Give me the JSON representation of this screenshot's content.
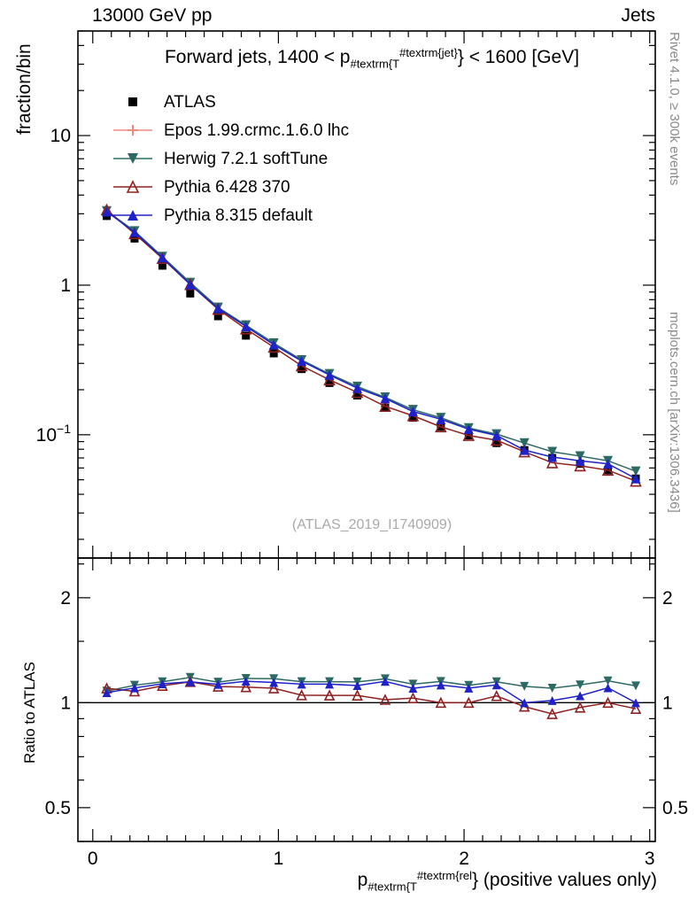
{
  "header": {
    "left": "13000 GeV pp",
    "right": "Jets"
  },
  "panel_title": {
    "prefix": "Forward jets, 1400 < p",
    "sub": "#textrm{T",
    "sup": "#textrm{jet}",
    "suffix": "} < 1600 [GeV]"
  },
  "watermark": "(ATLAS_2019_I1740909)",
  "side_notes": {
    "top_right": "Rivet 4.1.0, ≥ 300k events",
    "bottom_right": "mcplots.cern.ch [arXiv:1306.3436]"
  },
  "xlabel": {
    "base": "p",
    "sub": "#textrm{T",
    "sup": "#textrm{rel",
    "suffix": "} (positive values only)"
  },
  "chart_data": {
    "type": "line",
    "title": "Forward jets, 1400 < pT^{jet} < 1600 [GeV]",
    "legend_position": "top-left",
    "grid": false,
    "x": [
      0.075,
      0.225,
      0.375,
      0.525,
      0.675,
      0.825,
      0.975,
      1.125,
      1.275,
      1.425,
      1.575,
      1.725,
      1.875,
      2.025,
      2.175,
      2.325,
      2.475,
      2.625,
      2.775,
      2.925
    ],
    "series": [
      {
        "name": "ATLAS",
        "color": "#000000",
        "marker": "square-filled",
        "line": false,
        "values": [
          2.9,
          2.05,
          1.35,
          0.88,
          0.62,
          0.46,
          0.35,
          0.275,
          0.222,
          0.183,
          0.152,
          0.13,
          0.113,
          0.099,
          0.088,
          0.079,
          0.07,
          0.064,
          0.058,
          0.051
        ]
      },
      {
        "name": "Epos 1.99.crmc.1.6.0 lhc",
        "color": "#ef8a80",
        "marker": "cross-open",
        "line": true,
        "values": []
      },
      {
        "name": "Herwig 7.2.1 softTune",
        "color": "#2d6a63",
        "marker": "triangle-down-filled",
        "line": true,
        "values": [
          3.13,
          2.3,
          1.55,
          1.04,
          0.71,
          0.54,
          0.41,
          0.316,
          0.255,
          0.21,
          0.178,
          0.147,
          0.13,
          0.111,
          0.101,
          0.088,
          0.077,
          0.072,
          0.067,
          0.057
        ]
      },
      {
        "name": "Pythia 6.428 370",
        "color": "#8f2121",
        "marker": "triangle-up-open",
        "line": true,
        "values": [
          3.19,
          2.21,
          1.51,
          1.01,
          0.69,
          0.51,
          0.385,
          0.289,
          0.233,
          0.192,
          0.155,
          0.134,
          0.113,
          0.099,
          0.092,
          0.077,
          0.065,
          0.062,
          0.058,
          0.049
        ]
      },
      {
        "name": "Pythia 8.315 default",
        "color": "#1f22c8",
        "marker": "triangle-up-filled",
        "line": true,
        "values": [
          3.1,
          2.26,
          1.53,
          1.01,
          0.7,
          0.53,
          0.4,
          0.311,
          0.251,
          0.205,
          0.175,
          0.143,
          0.127,
          0.109,
          0.099,
          0.079,
          0.071,
          0.067,
          0.064,
          0.051
        ]
      }
    ],
    "main_axis": {
      "ylabel": "fraction/bin",
      "scale": "log",
      "ymin": 0.015,
      "ymax": 50,
      "yticks": [
        {
          "v": 10,
          "label": "10"
        },
        {
          "v": 1,
          "label": "1"
        },
        {
          "v": 0.1,
          "label": "10",
          "exp": "−1"
        }
      ]
    },
    "ratio_axis": {
      "ylabel": "Ratio to ATLAS",
      "scale": "log",
      "ymin": 0.4,
      "ymax": 2.6,
      "reference": 1,
      "yticks": [
        {
          "v": 0.5,
          "label": "0.5"
        },
        {
          "v": 1,
          "label": "1"
        },
        {
          "v": 2,
          "label": "2"
        }
      ],
      "minor_ticks": [
        0.4,
        0.6,
        0.7,
        0.8,
        0.9,
        1.5,
        2.5
      ]
    },
    "x_axis": {
      "min": -0.08,
      "max": 3.03,
      "minor_step": 0.1,
      "ticks": [
        {
          "v": 0,
          "label": "0"
        },
        {
          "v": 1,
          "label": "1"
        },
        {
          "v": 2,
          "label": "2"
        },
        {
          "v": 3,
          "label": "3"
        }
      ],
      "label": "pT^{rel} (positive values only)"
    }
  }
}
